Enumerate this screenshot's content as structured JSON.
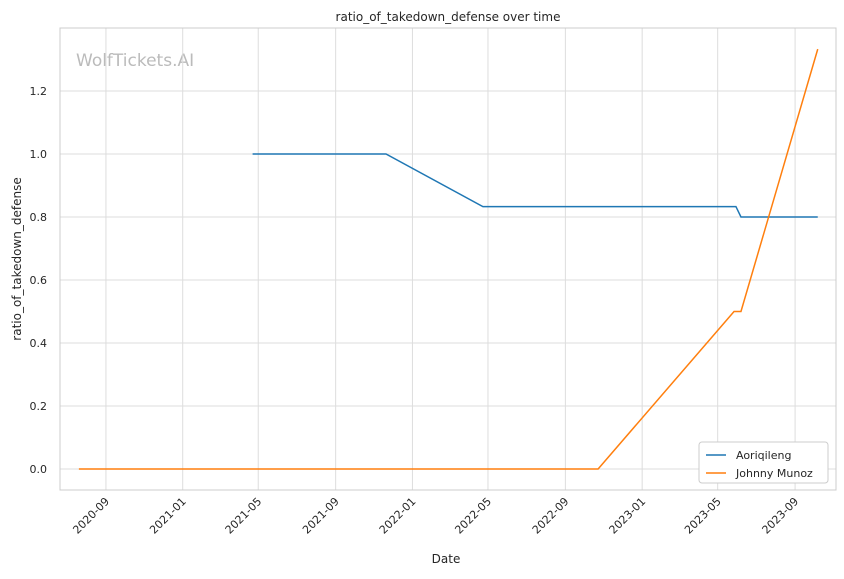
{
  "chart_data": {
    "type": "line",
    "title": "ratio_of_takedown_defense over time",
    "xlabel": "Date",
    "ylabel": "ratio_of_takedown_defense",
    "watermark": "WolfTickets.AI",
    "xlim": [
      "2020-06-20",
      "2023-11-05"
    ],
    "ylim": [
      -0.0667,
      1.4
    ],
    "xticks": [
      "2020-09",
      "2021-01",
      "2021-05",
      "2021-09",
      "2022-01",
      "2022-05",
      "2022-09",
      "2023-01",
      "2023-05",
      "2023-09"
    ],
    "yticks": [
      "0.0",
      "0.2",
      "0.4",
      "0.6",
      "0.8",
      "1.0",
      "1.2"
    ],
    "grid": true,
    "legend_position": "bottom-right",
    "series": [
      {
        "name": "Aoriqileng",
        "color": "#1f77b4",
        "points": [
          [
            "2021-04-22",
            1.0
          ],
          [
            "2021-11-20",
            1.0
          ],
          [
            "2022-04-23",
            0.833
          ],
          [
            "2023-05-30",
            0.833
          ],
          [
            "2023-06-07",
            0.8
          ],
          [
            "2023-10-07",
            0.8
          ]
        ]
      },
      {
        "name": "Johnny Munoz",
        "color": "#ff7f0e",
        "points": [
          [
            "2020-07-20",
            0.0
          ],
          [
            "2022-10-23",
            0.0
          ],
          [
            "2023-05-27",
            0.5
          ],
          [
            "2023-06-07",
            0.5
          ],
          [
            "2023-10-07",
            1.333
          ]
        ]
      }
    ]
  }
}
